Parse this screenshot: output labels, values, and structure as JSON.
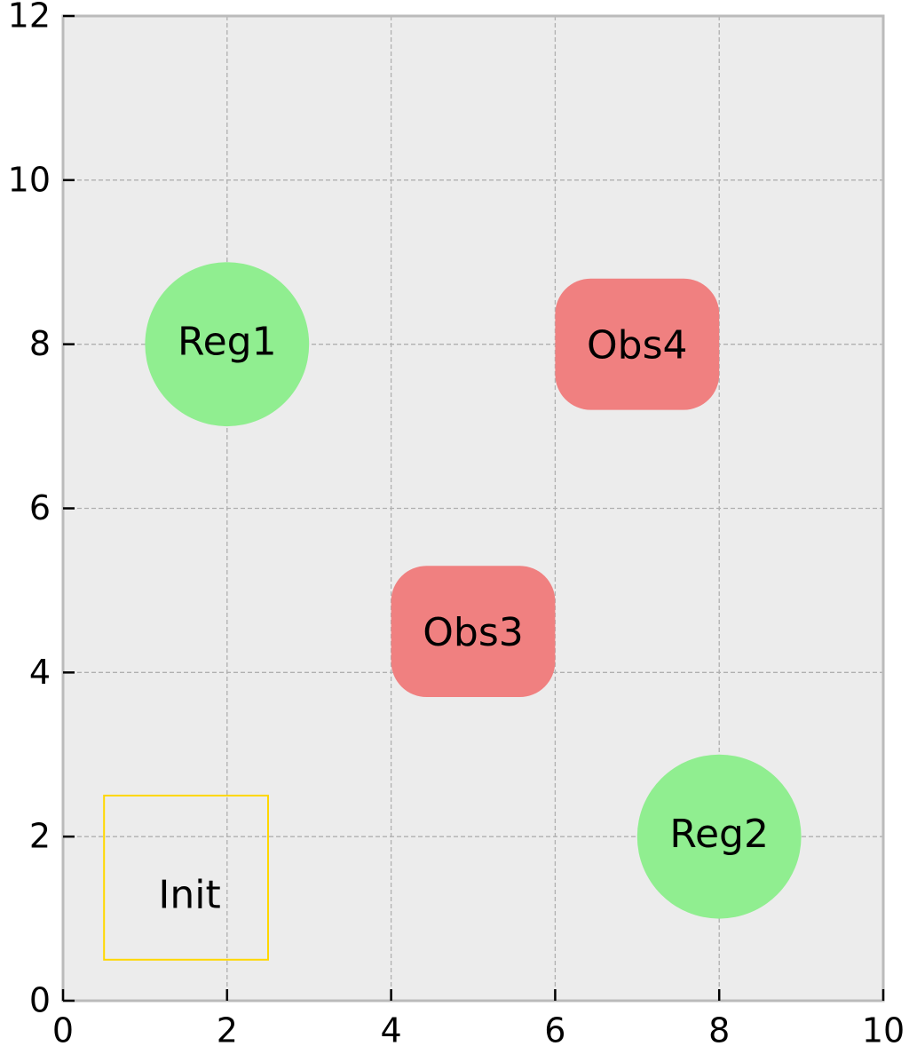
{
  "chart_data": {
    "type": "regions",
    "xlim": [
      0,
      10
    ],
    "ylim": [
      0,
      12
    ],
    "xticks": [
      0,
      2,
      4,
      6,
      8,
      10
    ],
    "yticks": [
      0,
      2,
      4,
      6,
      8,
      10,
      12
    ],
    "grid": true,
    "regions": [
      {
        "name": "Reg1",
        "shape": "circle",
        "center": [
          2,
          8
        ],
        "radius": 1,
        "color": "#90ee90",
        "style": "fill"
      },
      {
        "name": "Obs4",
        "shape": "rounded-rect",
        "x": [
          6,
          8
        ],
        "y": [
          7.2,
          8.8
        ],
        "color": "#f08080",
        "style": "fill"
      },
      {
        "name": "Obs3",
        "shape": "rounded-rect",
        "x": [
          4,
          6
        ],
        "y": [
          3.7,
          5.3
        ],
        "color": "#f08080",
        "style": "fill"
      },
      {
        "name": "Reg2",
        "shape": "circle",
        "center": [
          8,
          2
        ],
        "radius": 1,
        "color": "#90ee90",
        "style": "fill"
      },
      {
        "name": "Init",
        "shape": "rect",
        "x": [
          0.5,
          2.5
        ],
        "y": [
          0.5,
          2.5
        ],
        "color": "#ffd700",
        "style": "outline"
      }
    ]
  }
}
